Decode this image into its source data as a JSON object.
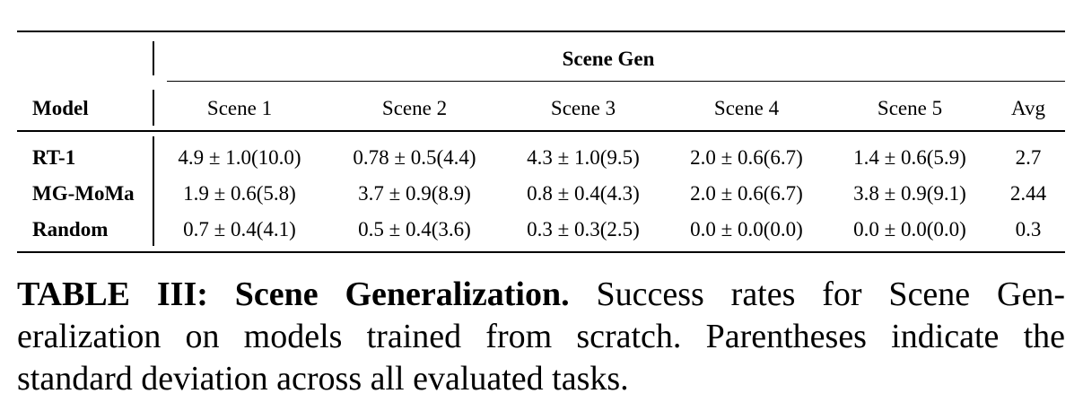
{
  "table": {
    "group_header": "Scene Gen",
    "columns": [
      "Model",
      "Scene 1",
      "Scene 2",
      "Scene 3",
      "Scene 4",
      "Scene 5",
      "Avg"
    ],
    "rows": [
      {
        "model": "RT-1",
        "values": [
          "4.9 ± 1.0(10.0)",
          "0.78 ± 0.5(4.4)",
          "4.3 ± 1.0(9.5)",
          "2.0 ± 0.6(6.7)",
          "1.4 ± 0.6(5.9)",
          "2.7"
        ]
      },
      {
        "model": "MG-MoMa",
        "values": [
          "1.9 ± 0.6(5.8)",
          "3.7 ± 0.9(8.9)",
          "0.8 ± 0.4(4.3)",
          "2.0 ± 0.6(6.7)",
          "3.8 ± 0.9(9.1)",
          "2.44"
        ]
      },
      {
        "model": "Random",
        "values": [
          "0.7 ± 0.4(4.1)",
          "0.5 ± 0.4(3.6)",
          "0.3 ± 0.3(2.5)",
          "0.0 ± 0.0(0.0)",
          "0.0 ± 0.0(0.0)",
          "0.3"
        ]
      }
    ]
  },
  "caption": {
    "label": "TABLE III: Scene Generalization.",
    "line1_rest": "Success rates for Scene Gen-",
    "line2": "eralization on models trained from scratch. Parentheses indicate the",
    "line3": "standard deviation across all evaluated tasks."
  }
}
